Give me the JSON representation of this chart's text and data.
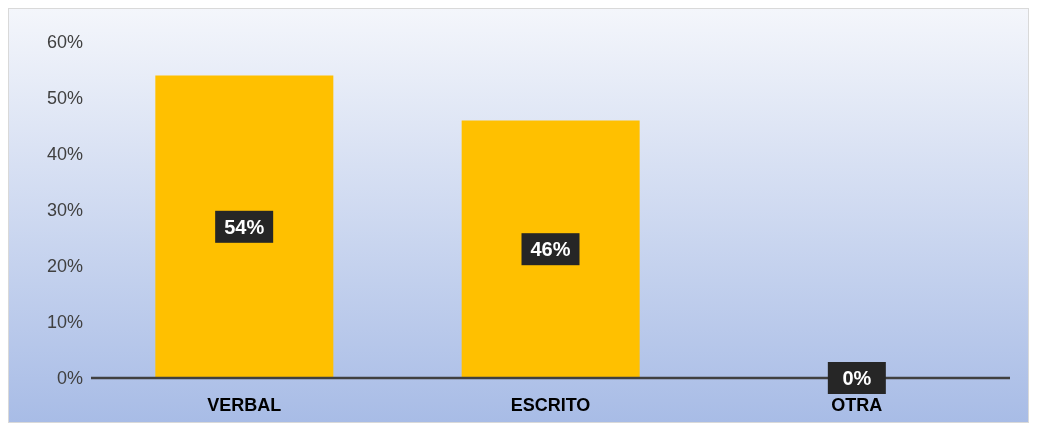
{
  "chart_data": {
    "type": "bar",
    "categories": [
      "VERBAL",
      "ESCRITO",
      "OTRA"
    ],
    "values": [
      54,
      46,
      0
    ],
    "color": "#ffc000",
    "value_labels": [
      "54%",
      "46%",
      "0%"
    ],
    "ylim": [
      0,
      60
    ],
    "yticks": [
      {
        "value": 0,
        "label": "0%"
      },
      {
        "value": 10,
        "label": "10%"
      },
      {
        "value": 20,
        "label": "20%"
      },
      {
        "value": 30,
        "label": "30%"
      },
      {
        "value": 40,
        "label": "40%"
      },
      {
        "value": 50,
        "label": "50%"
      },
      {
        "value": 60,
        "label": "60%"
      }
    ],
    "grid": false,
    "legend": false
  }
}
